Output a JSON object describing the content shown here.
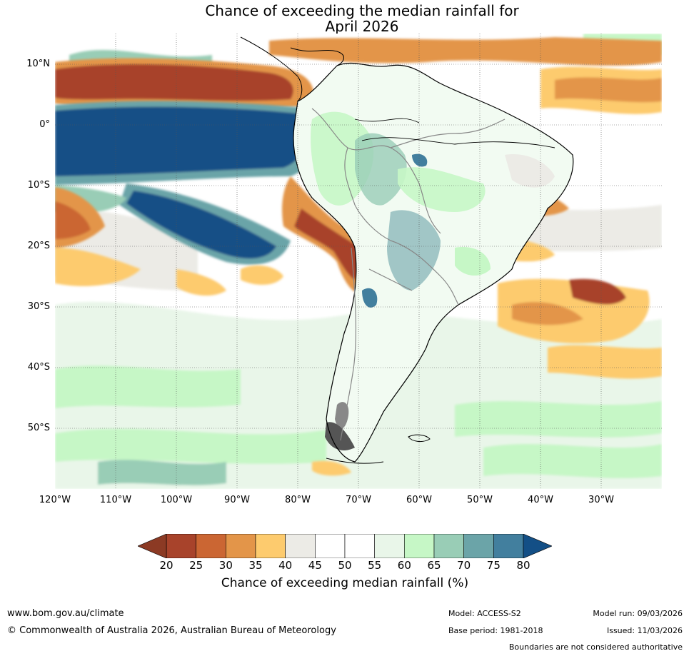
{
  "title": {
    "line1": "Chance of exceeding the median rainfall for",
    "line2": "April 2026"
  },
  "map": {
    "lat_labels": [
      "10°N",
      "0°",
      "10°S",
      "20°S",
      "30°S",
      "40°S",
      "50°S"
    ],
    "lon_labels": [
      "120°W",
      "110°W",
      "100°W",
      "90°W",
      "80°W",
      "70°W",
      "60°W",
      "50°W",
      "40°W",
      "30°W"
    ]
  },
  "colorbar": {
    "ticks": [
      "20",
      "25",
      "30",
      "35",
      "40",
      "45",
      "50",
      "55",
      "60",
      "65",
      "70",
      "75",
      "80"
    ],
    "colors": [
      "#a8432b",
      "#cb6633",
      "#e39549",
      "#fdcb6e",
      "#ecebe6",
      "#ffffff",
      "#ffffff",
      "#e9f6e9",
      "#c6f7c6",
      "#99cdb6",
      "#6ba4a8",
      "#427f9e"
    ],
    "under_color": "#8c3a24",
    "over_color": "#134f86",
    "label": "Chance of exceeding median rainfall (%)"
  },
  "footer": {
    "website": "www.bom.gov.au/climate",
    "copyright": "© Commonwealth of Australia 2026, Australian Bureau of Meteorology",
    "model": "Model: ACCESS-S2",
    "base_period": "Base period: 1981-2018",
    "model_run": "Model run: 09/03/2026",
    "issued": "Issued: 11/03/2026",
    "disclaimer": "Boundaries are not considered authoritative"
  }
}
